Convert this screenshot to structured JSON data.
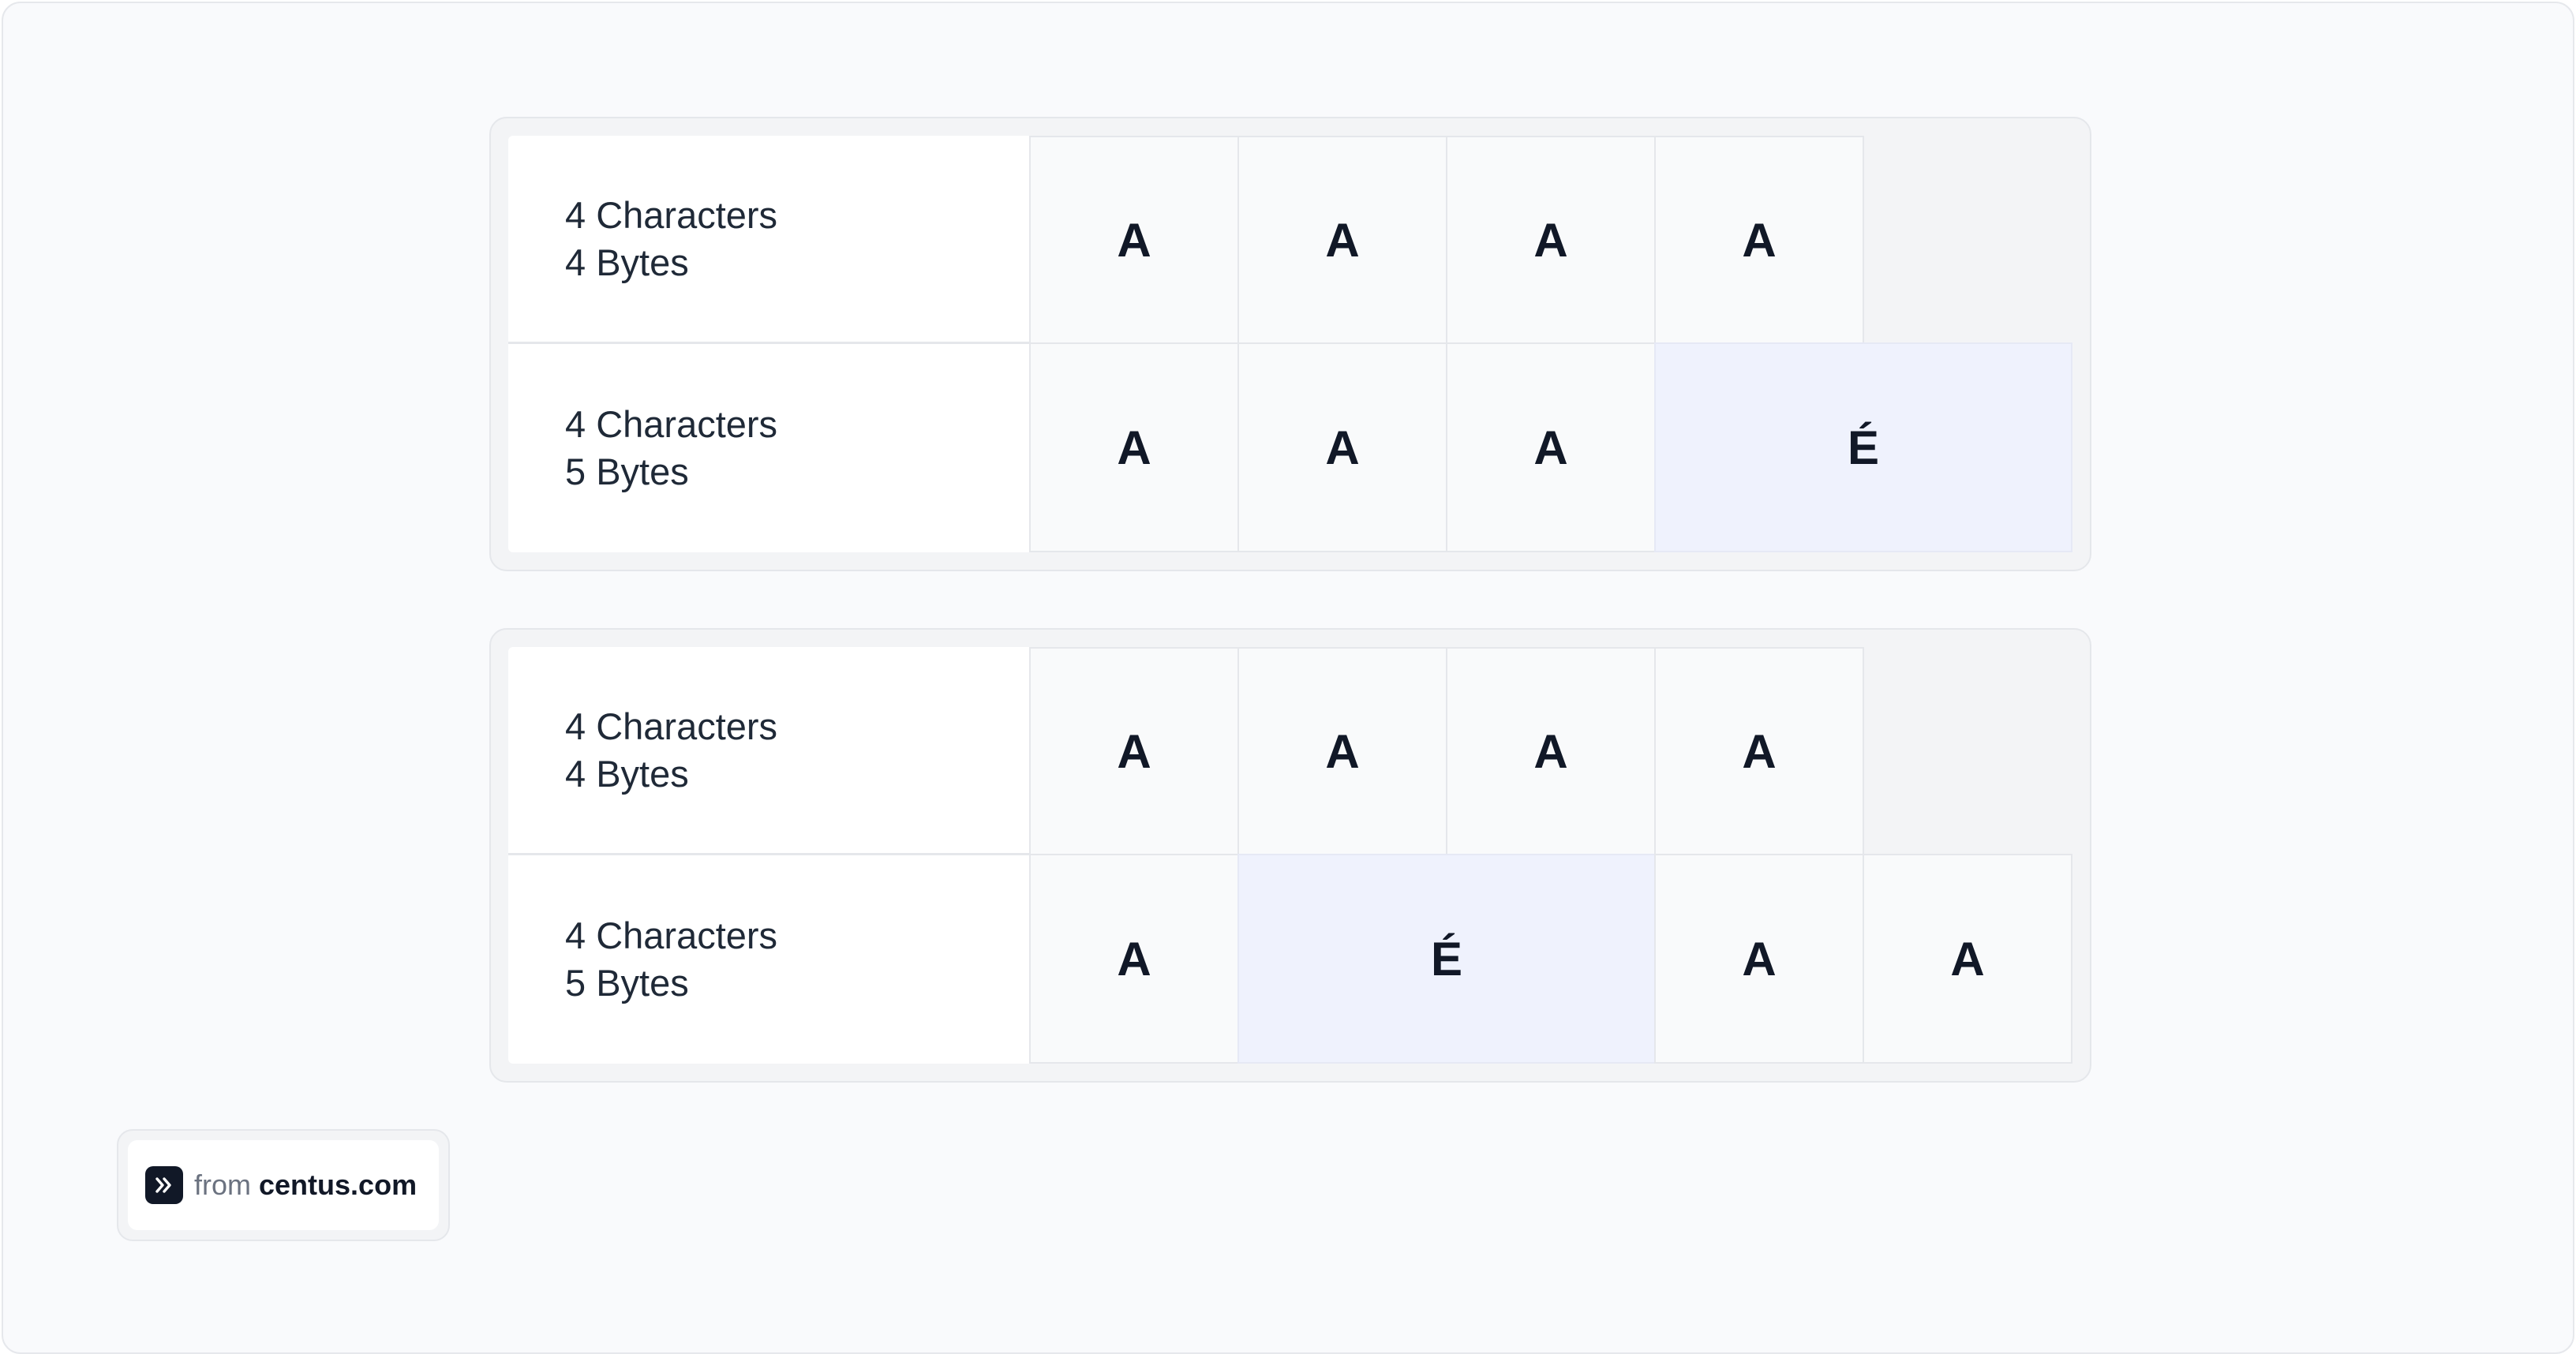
{
  "panels": [
    {
      "rows": [
        {
          "label_line1": "4 Characters",
          "label_line2": "4 Bytes",
          "cells": [
            {
              "char": "A",
              "bytes": 1
            },
            {
              "char": "A",
              "bytes": 1
            },
            {
              "char": "A",
              "bytes": 1
            },
            {
              "char": "A",
              "bytes": 1
            }
          ]
        },
        {
          "label_line1": "4 Characters",
          "label_line2": "5 Bytes",
          "cells": [
            {
              "char": "A",
              "bytes": 1
            },
            {
              "char": "A",
              "bytes": 1
            },
            {
              "char": "A",
              "bytes": 1
            },
            {
              "char": "É",
              "bytes": 2
            }
          ]
        }
      ]
    },
    {
      "rows": [
        {
          "label_line1": "4 Characters",
          "label_line2": "4 Bytes",
          "cells": [
            {
              "char": "A",
              "bytes": 1
            },
            {
              "char": "A",
              "bytes": 1
            },
            {
              "char": "A",
              "bytes": 1
            },
            {
              "char": "A",
              "bytes": 1
            }
          ]
        },
        {
          "label_line1": "4 Characters",
          "label_line2": "5 Bytes",
          "cells": [
            {
              "char": "A",
              "bytes": 1
            },
            {
              "char": "É",
              "bytes": 2
            },
            {
              "char": "A",
              "bytes": 1
            },
            {
              "char": "A",
              "bytes": 1
            }
          ]
        }
      ]
    }
  ],
  "badge": {
    "prefix": "from",
    "site": "centus.com",
    "icon": "double-chevron-right-icon"
  },
  "colors": {
    "page_background": "#f9fafc",
    "panel_background": "#f3f4f6",
    "byte_cell": "#f9fafb",
    "multibyte_cell": "#eff2fd",
    "text_dark": "#111827",
    "text_muted": "#6b7280"
  }
}
